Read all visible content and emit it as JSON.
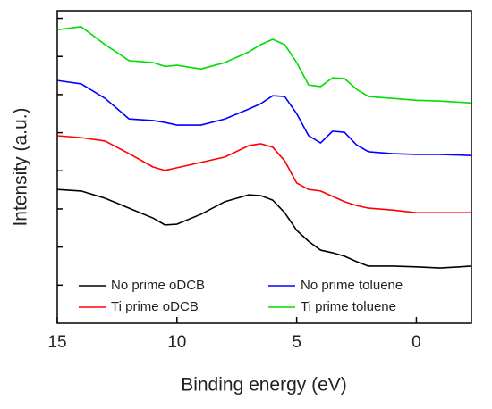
{
  "chart_data": {
    "type": "line",
    "xlabel": "Binding energy (eV)",
    "ylabel": "Intensity (a.u.)",
    "x": [
      15,
      14,
      13,
      12,
      11,
      10.5,
      10,
      9,
      8,
      7,
      6.5,
      6,
      5.5,
      5,
      4.5,
      4,
      3.5,
      3,
      2.5,
      2,
      1,
      0,
      -1,
      -2.3
    ],
    "series": [
      {
        "name": "No prime oDCB",
        "color": "#000000",
        "values": [
          3.51,
          3.47,
          3.28,
          3.02,
          2.76,
          2.58,
          2.6,
          2.86,
          3.19,
          3.37,
          3.35,
          3.23,
          2.9,
          2.44,
          2.15,
          1.92,
          1.85,
          1.76,
          1.62,
          1.5,
          1.5,
          1.48,
          1.45,
          1.5
        ]
      },
      {
        "name": "No prime toluene",
        "color": "#0000ff",
        "values": [
          6.37,
          6.28,
          5.9,
          5.36,
          5.32,
          5.27,
          5.2,
          5.2,
          5.36,
          5.62,
          5.76,
          5.97,
          5.95,
          5.5,
          4.92,
          4.73,
          5.04,
          5.01,
          4.68,
          4.5,
          4.45,
          4.43,
          4.43,
          4.4
        ]
      },
      {
        "name": "Ti prime oDCB",
        "color": "#ff0000",
        "values": [
          4.92,
          4.87,
          4.78,
          4.45,
          4.1,
          4.01,
          4.08,
          4.22,
          4.36,
          4.66,
          4.71,
          4.62,
          4.26,
          3.68,
          3.51,
          3.47,
          3.33,
          3.19,
          3.09,
          3.02,
          2.97,
          2.9,
          2.9,
          2.9
        ]
      },
      {
        "name": "Ti prime toluene",
        "color": "#00dd00",
        "values": [
          7.7,
          7.78,
          7.31,
          6.89,
          6.84,
          6.74,
          6.77,
          6.67,
          6.84,
          7.12,
          7.31,
          7.45,
          7.31,
          6.84,
          6.25,
          6.21,
          6.44,
          6.42,
          6.14,
          5.95,
          5.9,
          5.85,
          5.83,
          5.78
        ]
      }
    ],
    "xlim": [
      15,
      -2.3
    ],
    "xticks": [
      15,
      10,
      5,
      0
    ],
    "ylim": [
      0,
      8.2
    ],
    "yticks": [
      1,
      2,
      3,
      4,
      5,
      6,
      7,
      8
    ],
    "legend": "lower center",
    "grid": false
  }
}
